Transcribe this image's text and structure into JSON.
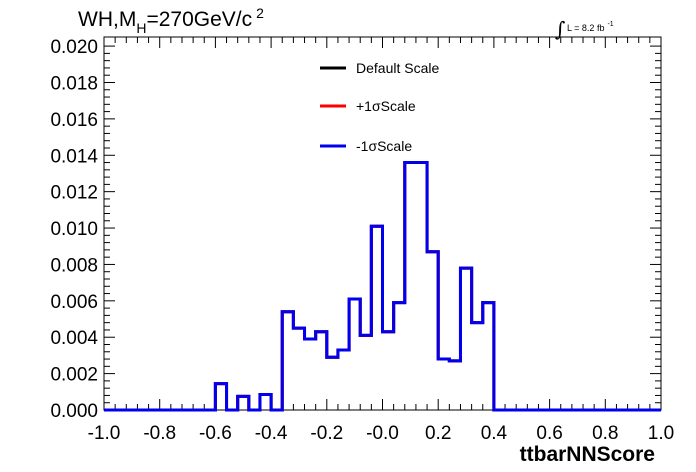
{
  "chart_data": {
    "type": "line",
    "title": {
      "prefix": "WH,M",
      "subscript": "H",
      "main": "=270GeV/c",
      "superscript": "2"
    },
    "lumi": {
      "integral": "∫",
      "text": "L = 8.2 fb",
      "superscript": "-1"
    },
    "xlabel": "ttbarNNScore",
    "ylabel": "",
    "xlim": [
      -1.0,
      1.0
    ],
    "ylim": [
      0.0,
      0.0205
    ],
    "x_ticks": [
      {
        "value": -1.0,
        "label": "-1.0"
      },
      {
        "value": -0.8,
        "label": "-0.8"
      },
      {
        "value": -0.6,
        "label": "-0.6"
      },
      {
        "value": -0.4,
        "label": "-0.4"
      },
      {
        "value": -0.2,
        "label": "-0.2"
      },
      {
        "value": 0.0,
        "label": "-0.0"
      },
      {
        "value": 0.2,
        "label": "0.2"
      },
      {
        "value": 0.4,
        "label": "0.4"
      },
      {
        "value": 0.6,
        "label": "0.6"
      },
      {
        "value": 0.8,
        "label": "0.8"
      },
      {
        "value": 1.0,
        "label": "1.0"
      }
    ],
    "y_ticks": [
      {
        "value": 0.0,
        "label": "0.000"
      },
      {
        "value": 0.002,
        "label": "0.002"
      },
      {
        "value": 0.004,
        "label": "0.004"
      },
      {
        "value": 0.006,
        "label": "0.006"
      },
      {
        "value": 0.008,
        "label": "0.008"
      },
      {
        "value": 0.01,
        "label": "0.010"
      },
      {
        "value": 0.012,
        "label": "0.012"
      },
      {
        "value": 0.014,
        "label": "0.014"
      },
      {
        "value": 0.016,
        "label": "0.016"
      },
      {
        "value": 0.018,
        "label": "0.018"
      },
      {
        "value": 0.02,
        "label": "0.020"
      }
    ],
    "bin_edges": [
      -1.0,
      -0.96,
      -0.92,
      -0.88,
      -0.84,
      -0.8,
      -0.76,
      -0.72,
      -0.68,
      -0.64,
      -0.6,
      -0.56,
      -0.52,
      -0.48,
      -0.44,
      -0.4,
      -0.36,
      -0.32,
      -0.28,
      -0.24,
      -0.2,
      -0.16,
      -0.12,
      -0.08,
      -0.04,
      0.0,
      0.04,
      0.08,
      0.12,
      0.16,
      0.2,
      0.24,
      0.28,
      0.32,
      0.36,
      0.4,
      0.44,
      0.48,
      0.52,
      0.56,
      0.6,
      0.64,
      0.68,
      0.72,
      0.76,
      0.8,
      0.84,
      0.88,
      0.92,
      0.96,
      1.0
    ],
    "legend": [
      {
        "label": "Default Scale",
        "color": "#000000"
      },
      {
        "label": "+1σScale",
        "color": "#ff0000"
      },
      {
        "label": "-1σScale",
        "color": "#0000ee"
      }
    ],
    "series": [
      {
        "name": "Default Scale",
        "color": "#000000",
        "values": [
          0,
          0,
          0,
          0,
          0,
          0,
          0,
          0,
          0,
          0,
          0.00145,
          0,
          0.00075,
          0,
          0.00085,
          0,
          0.0054,
          0.0045,
          0.0039,
          0.0043,
          0.0029,
          0.0033,
          0.0061,
          0.0041,
          0.0101,
          0.0043,
          0.0059,
          0.0136,
          0.0136,
          0.0087,
          0.0028,
          0.0027,
          0.0078,
          0.0048,
          0.0059,
          0,
          0,
          0,
          0,
          0,
          0,
          0,
          0,
          0,
          0,
          0,
          0,
          0,
          0,
          0
        ]
      },
      {
        "name": "+1σScale",
        "color": "#ff0000",
        "values": [
          0,
          0,
          0,
          0,
          0,
          0,
          0,
          0,
          0,
          0,
          0.00145,
          0,
          0.00075,
          0,
          0.00085,
          0,
          0.0054,
          0.0045,
          0.0039,
          0.0043,
          0.0029,
          0.0033,
          0.0061,
          0.0041,
          0.0101,
          0.0043,
          0.0059,
          0.0136,
          0.0136,
          0.0087,
          0.0028,
          0.0027,
          0.0078,
          0.0048,
          0.0059,
          0,
          0,
          0,
          0,
          0,
          0,
          0,
          0,
          0,
          0,
          0,
          0,
          0,
          0,
          0
        ]
      },
      {
        "name": "-1σScale",
        "color": "#0000ee",
        "values": [
          0,
          0,
          0,
          0,
          0,
          0,
          0,
          0,
          0,
          0,
          0.00145,
          0,
          0.00075,
          0,
          0.00085,
          0,
          0.0054,
          0.0045,
          0.0039,
          0.0043,
          0.0029,
          0.0033,
          0.0061,
          0.0041,
          0.0101,
          0.0043,
          0.0059,
          0.0136,
          0.0136,
          0.0087,
          0.0028,
          0.0027,
          0.0078,
          0.0048,
          0.0059,
          0,
          0,
          0,
          0,
          0,
          0,
          0,
          0,
          0,
          0,
          0,
          0,
          0,
          0,
          0
        ]
      }
    ]
  }
}
